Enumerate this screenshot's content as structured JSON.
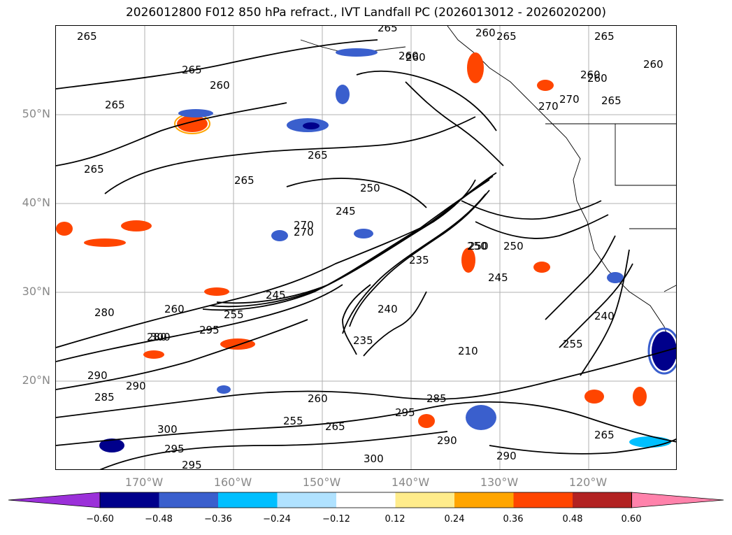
{
  "title": "2026012800 F012 850 hPa refract., IVT Landfall PC (2026013012 - 2026020200)",
  "lat_labels": [
    "50°N",
    "40°N",
    "30°N",
    "20°N"
  ],
  "lon_labels": [
    "170°W",
    "160°W",
    "150°W",
    "140°W",
    "130°W",
    "120°W"
  ],
  "contour_labels": [
    "265",
    "260",
    "265",
    "265",
    "265",
    "260",
    "265",
    "250",
    "245",
    "270",
    "280",
    "260",
    "255",
    "245",
    "250",
    "235",
    "240",
    "235",
    "245",
    "250",
    "270",
    "260",
    "280",
    "290",
    "295",
    "300",
    "295",
    "285",
    "260",
    "255",
    "265",
    "295",
    "285",
    "290",
    "300",
    "300",
    "290",
    "295",
    "265",
    "240",
    "255",
    "260",
    "265",
    "250",
    "210",
    "290",
    "270",
    "270",
    "265",
    "260",
    "265",
    "260",
    "265",
    "265",
    "260"
  ],
  "colorbar": {
    "colors": [
      "#9b30d9",
      "#00008b",
      "#3a5fcd",
      "#00bfff",
      "#b0e2ff",
      "#ffffff",
      "#ffec8b",
      "#ffa500",
      "#ff4500",
      "#b22222",
      "#ff82ab"
    ],
    "ticks": [
      "−0.60",
      "−0.48",
      "−0.36",
      "−0.24",
      "−0.12",
      "0.12",
      "0.24",
      "0.36",
      "0.48",
      "0.60"
    ]
  }
}
